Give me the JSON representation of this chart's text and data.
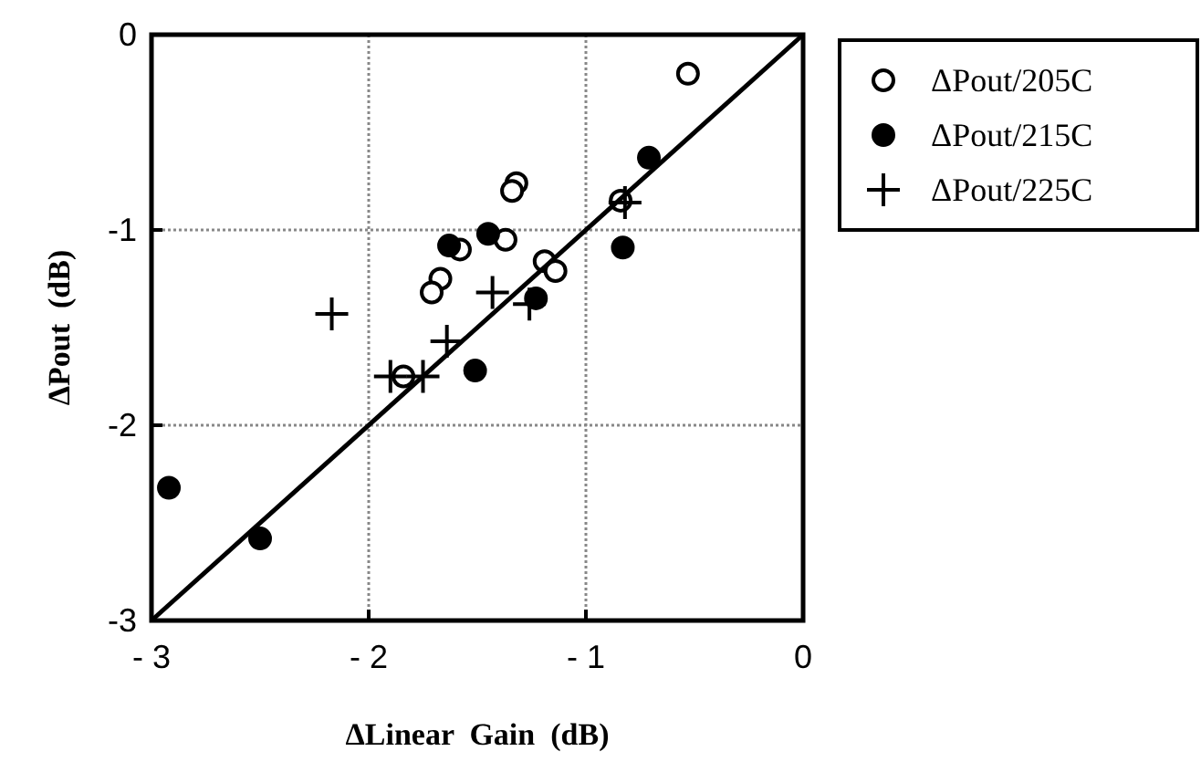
{
  "chart_data": {
    "type": "scatter",
    "xlabel": "ΔLinear  Gain  (dB)",
    "ylabel": "ΔPout  (dB)",
    "xlim": [
      -3,
      0
    ],
    "ylim": [
      -3,
      0
    ],
    "xticks": [
      {
        "value": -3,
        "label": "- 3"
      },
      {
        "value": -2,
        "label": "- 2"
      },
      {
        "value": -1,
        "label": "- 1"
      },
      0
    ],
    "yticks": [
      -3,
      -2,
      -1,
      0
    ],
    "grid": true,
    "legend": "top right",
    "series": [
      {
        "name": "ΔPout/205C",
        "color": "#ffffff",
        "marker": "circle",
        "x": [
          -0.53,
          -1.32,
          -1.34,
          -1.37,
          -1.58,
          -1.67,
          -1.71,
          -1.19,
          -1.14,
          -1.84,
          -0.84
        ],
        "values": [
          -0.2,
          -0.76,
          -0.8,
          -1.05,
          -1.1,
          -1.25,
          -1.32,
          -1.16,
          -1.21,
          -1.75,
          -0.85
        ]
      },
      {
        "name": "ΔPout/215C",
        "color": "#000000",
        "marker": "circle",
        "x": [
          -0.71,
          -0.83,
          -1.45,
          -1.63,
          -1.23,
          -1.51,
          -2.92,
          -2.5
        ],
        "values": [
          -0.63,
          -1.09,
          -1.02,
          -1.08,
          -1.35,
          -1.72,
          -2.32,
          -2.58
        ]
      },
      {
        "name": "ΔPout/225C",
        "color": "#000000",
        "marker": "cross",
        "x": [
          -2.17,
          -1.43,
          -1.26,
          -1.64,
          -1.9,
          -1.75,
          -0.82
        ],
        "values": [
          -1.43,
          -1.32,
          -1.38,
          -1.57,
          -1.75,
          -1.75,
          -0.86
        ]
      },
      {
        "type": "line",
        "color": "#000000",
        "marker": "none",
        "line_style": "solid",
        "x": [
          -3,
          0
        ],
        "values": [
          -3,
          0
        ]
      }
    ]
  }
}
